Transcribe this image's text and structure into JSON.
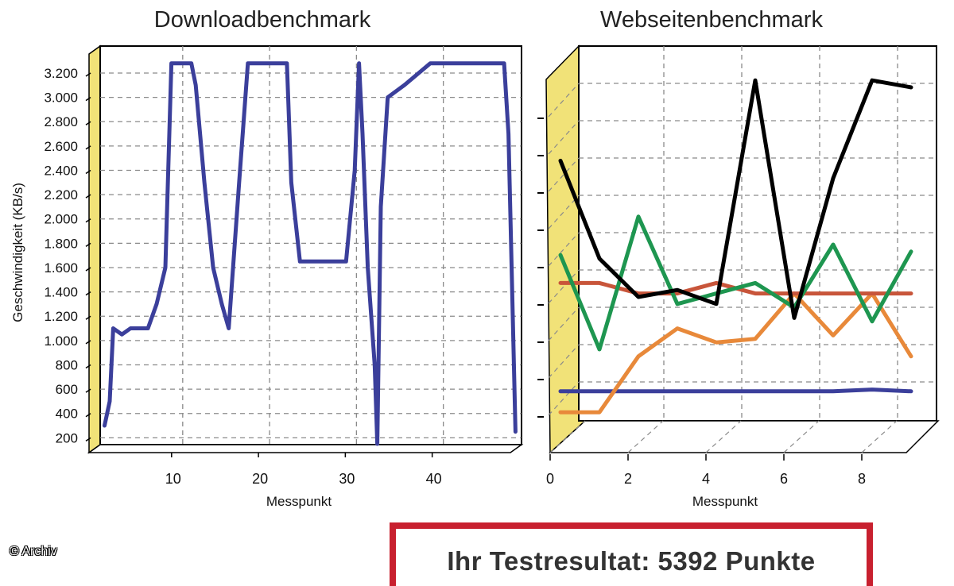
{
  "credit": "© Archiv",
  "result": {
    "text": "Ihr Testresultat: 5392 Punkte"
  },
  "chart_data": [
    {
      "type": "line",
      "title": "Downloadbenchmark",
      "xlabel": "Messpunkt",
      "ylabel": "Geschwindigkeit (KB/s)",
      "xlim": [
        0.5,
        49
      ],
      "ylim": [
        150,
        3350
      ],
      "xticks": [
        10,
        20,
        30,
        40
      ],
      "yticks": [
        200,
        400,
        600,
        800,
        1000,
        1200,
        1400,
        1600,
        1800,
        2000,
        2200,
        2400,
        2600,
        2800,
        3000,
        3200
      ],
      "ytick_labels": [
        "200",
        "400",
        "600",
        "800",
        "1.000",
        "1.200",
        "1.400",
        "1.600",
        "1.800",
        "2.000",
        "2.200",
        "2.400",
        "2.600",
        "2.800",
        "3.000",
        "3.200"
      ],
      "grid": true,
      "series": [
        {
          "color": "#3b3f9b",
          "x": [
            1,
            1.6,
            2,
            3,
            4,
            5,
            6,
            7,
            8,
            8.7,
            9.3,
            11,
            11.5,
            12.5,
            13.5,
            14.5,
            15.3,
            16.5,
            17.5,
            18.5,
            22,
            22.5,
            23.5,
            27.5,
            28.8,
            29.8,
            30.3,
            30.7,
            31.3,
            32.1,
            32.4,
            32.8,
            33.6,
            35.5,
            38.5,
            47,
            47.5,
            48.3
          ],
          "y": [
            300,
            500,
            1100,
            1050,
            1100,
            1100,
            1100,
            1300,
            1600,
            3280,
            3280,
            3280,
            3100,
            2300,
            1600,
            1300,
            1100,
            2300,
            3280,
            3280,
            3280,
            2300,
            1650,
            1650,
            1650,
            2400,
            3280,
            2700,
            1600,
            800,
            150,
            2100,
            3000,
            3100,
            3280,
            3280,
            2700,
            250
          ]
        }
      ]
    },
    {
      "type": "line",
      "title": "Webseitenbenchmark",
      "xlabel": "Messpunkt",
      "xlim": [
        0,
        9.2
      ],
      "ylim": [
        0,
        10
      ],
      "xticks": [
        0,
        2,
        4,
        6,
        8
      ],
      "grid": true,
      "series": [
        {
          "color": "#000000",
          "x": [
            0.3,
            1.3,
            2.3,
            3.3,
            4.3,
            5.3,
            6.3,
            7.3,
            8.3,
            9.3
          ],
          "y": [
            7.4,
            4.6,
            3.5,
            3.7,
            3.3,
            9.7,
            2.9,
            6.9,
            9.7,
            9.5
          ]
        },
        {
          "color": "#1e9650",
          "x": [
            0.3,
            1.3,
            2.3,
            3.3,
            4.3,
            5.3,
            6.3,
            7.3,
            8.3,
            9.3
          ],
          "y": [
            4.7,
            2.0,
            5.8,
            3.3,
            3.6,
            3.9,
            3.2,
            5.0,
            2.8,
            4.8
          ]
        },
        {
          "color": "#c8553a",
          "x": [
            0.3,
            1.3,
            2.3,
            3.3,
            4.3,
            5.3,
            6.3,
            7.3,
            8.3,
            9.3
          ],
          "y": [
            3.9,
            3.9,
            3.6,
            3.6,
            3.9,
            3.6,
            3.6,
            3.6,
            3.6,
            3.6
          ]
        },
        {
          "color": "#e8893a",
          "x": [
            0.3,
            1.3,
            2.3,
            3.3,
            4.3,
            5.3,
            6.3,
            7.3,
            8.3,
            9.3
          ],
          "y": [
            0.2,
            0.2,
            1.8,
            2.6,
            2.2,
            2.3,
            3.6,
            2.4,
            3.6,
            1.8
          ]
        },
        {
          "color": "#3b3f9b",
          "x": [
            0.3,
            1.3,
            2.3,
            3.3,
            4.3,
            5.3,
            6.3,
            7.3,
            8.3,
            9.3
          ],
          "y": [
            0.8,
            0.8,
            0.8,
            0.8,
            0.8,
            0.8,
            0.8,
            0.8,
            0.85,
            0.8
          ]
        }
      ]
    }
  ]
}
